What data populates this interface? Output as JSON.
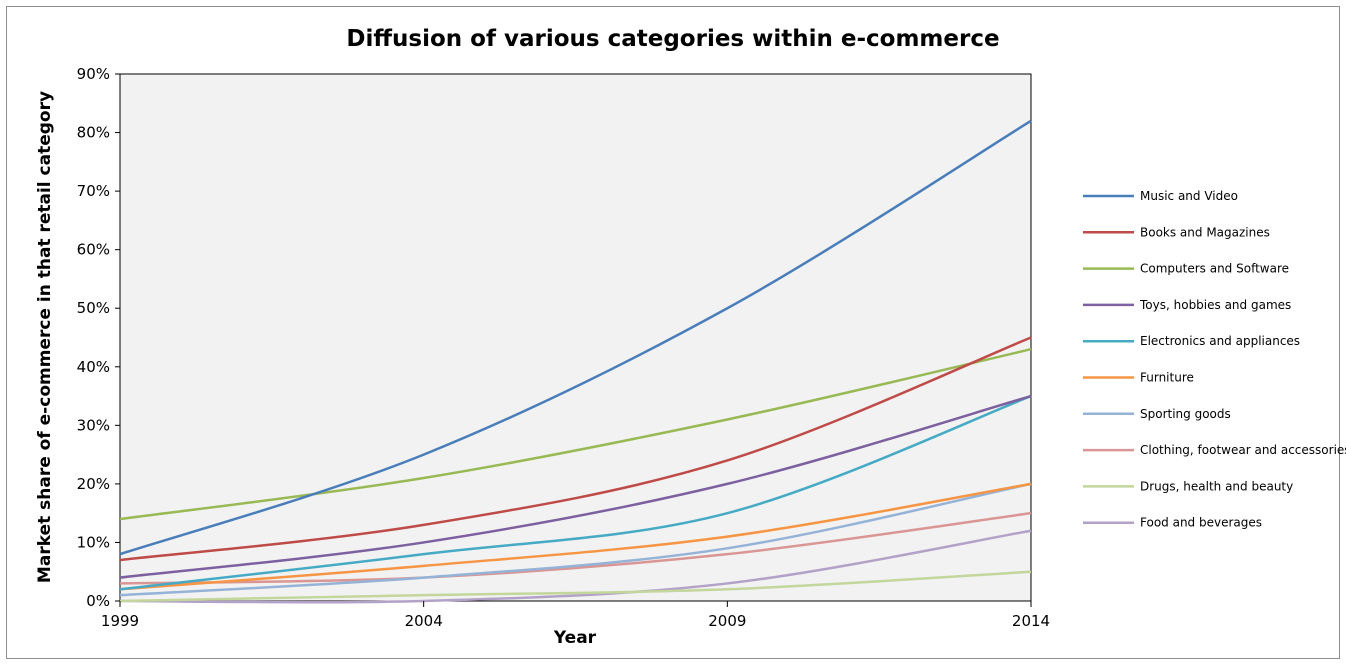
{
  "chart_data": {
    "type": "line",
    "title": "Diffusion of various categories within e-commerce",
    "xlabel": "Year",
    "ylabel": "Market share of e-commerce in that retail category",
    "x": [
      1999,
      2004,
      2009,
      2014
    ],
    "x_ticks": [
      "1999",
      "2004",
      "2009",
      "2014"
    ],
    "y_ticks": [
      "0%",
      "10%",
      "20%",
      "30%",
      "40%",
      "50%",
      "60%",
      "70%",
      "80%",
      "90%"
    ],
    "ylim": [
      0,
      90
    ],
    "xlim": [
      1999,
      2014
    ],
    "grid": false,
    "legend_position": "right",
    "plot_background": "#f2f2f2",
    "series": [
      {
        "name": "Music and Video",
        "color": "#4a7ebb",
        "values": [
          8,
          25,
          50,
          82
        ]
      },
      {
        "name": "Books and Magazines",
        "color": "#be4b48",
        "values": [
          7,
          13,
          24,
          45
        ]
      },
      {
        "name": "Computers and Software",
        "color": "#98b954",
        "values": [
          14,
          21,
          31,
          43
        ]
      },
      {
        "name": "Toys, hobbies and games",
        "color": "#7d60a0",
        "values": [
          4,
          10,
          20,
          35
        ]
      },
      {
        "name": "Electronics and appliances",
        "color": "#46aac5",
        "values": [
          2,
          8,
          15,
          35
        ]
      },
      {
        "name": "Furniture",
        "color": "#f69544",
        "values": [
          2,
          6,
          11,
          20
        ]
      },
      {
        "name": "Sporting goods",
        "color": "#95b3d7",
        "values": [
          1,
          4,
          9,
          20
        ]
      },
      {
        "name": "Clothing, footwear and accessories",
        "color": "#d99694",
        "values": [
          3,
          4,
          8,
          15
        ]
      },
      {
        "name": "Drugs, health and beauty",
        "color": "#c3d69b",
        "values": [
          0,
          1,
          2,
          5
        ]
      },
      {
        "name": "Food and beverages",
        "color": "#b3a2c7",
        "values": [
          0,
          0,
          3,
          12
        ]
      }
    ]
  }
}
